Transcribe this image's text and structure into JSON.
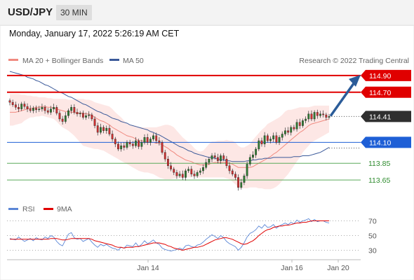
{
  "header": {
    "symbol": "USD/JPY",
    "timeframe": "30 MIN"
  },
  "datetime": "Monday, January 17, 2022 5:26:19 AM CET",
  "legend": {
    "ma20": "MA 20 + Bollinger Bands",
    "ma50": "MA 50",
    "rsi": "RSI",
    "rsi_ma": "9MA"
  },
  "copyright": "Research © 2022 Trading Central",
  "colors": {
    "bull": "#2e7d32",
    "bear": "#d32f2f",
    "resistance": "#e00000",
    "support": "#1e5fd6",
    "minor_level": "#5aaa5a",
    "ma20": "#f08a80",
    "ma50": "#3b5a9a",
    "band_fill": "#fde3e0",
    "rsi": "#5a86d6",
    "rsi_ma": "#e00000",
    "arrow": "#2b5c99"
  },
  "chart_data": [
    {
      "type": "candlestick",
      "title": "USD/JPY 30 MIN",
      "ylim": [
        113.5,
        115.0
      ],
      "x_ticks": [
        "Jan 14",
        "Jan 16",
        "Jan 20"
      ],
      "current_price": "114.41",
      "levels": [
        {
          "value": 114.9,
          "label": "114.90",
          "kind": "resistance",
          "style": "tag"
        },
        {
          "value": 114.7,
          "label": "114.70",
          "kind": "resistance",
          "style": "tag"
        },
        {
          "value": 114.1,
          "label": "114.10",
          "kind": "support",
          "style": "tag"
        },
        {
          "value": 113.85,
          "label": "113.85",
          "kind": "minor",
          "style": "text"
        },
        {
          "value": 113.65,
          "label": "113.65",
          "kind": "minor",
          "style": "text"
        }
      ],
      "close": [
        114.58,
        114.55,
        114.52,
        114.5,
        114.56,
        114.53,
        114.5,
        114.48,
        114.51,
        114.49,
        114.5,
        114.52,
        114.48,
        114.46,
        114.5,
        114.52,
        114.45,
        114.38,
        114.35,
        114.42,
        114.48,
        114.52,
        114.46,
        114.44,
        114.45,
        114.4,
        114.42,
        114.43,
        114.38,
        114.3,
        114.22,
        114.28,
        114.24,
        114.27,
        114.2,
        114.14,
        114.08,
        114.02,
        114.06,
        114.04,
        114.1,
        114.08,
        114.06,
        114.12,
        114.05,
        114.1,
        114.16,
        114.1,
        114.14,
        114.18,
        114.12,
        114.1,
        113.98,
        113.9,
        113.82,
        113.78,
        113.74,
        113.7,
        113.72,
        113.68,
        113.76,
        113.78,
        113.72,
        113.7,
        113.74,
        113.76,
        113.8,
        113.86,
        113.9,
        113.94,
        113.92,
        113.88,
        113.94,
        113.9,
        113.82,
        113.76,
        113.72,
        113.68,
        113.56,
        113.62,
        113.7,
        113.84,
        113.92,
        113.95,
        114.02,
        114.12,
        114.08,
        114.18,
        114.12,
        114.14,
        114.18,
        114.1,
        114.16,
        114.2,
        114.24,
        114.22,
        114.28,
        114.26,
        114.34,
        114.3,
        114.36,
        114.38,
        114.44,
        114.38,
        114.46,
        114.42,
        114.44,
        114.43,
        114.4,
        114.41
      ],
      "ma20": [
        114.46,
        114.46,
        114.46,
        114.47,
        114.48,
        114.49,
        114.5,
        114.51,
        114.51,
        114.52,
        114.52,
        114.53,
        114.53,
        114.52,
        114.52,
        114.51,
        114.5,
        114.49,
        114.48,
        114.47,
        114.47,
        114.46,
        114.46,
        114.45,
        114.45,
        114.45,
        114.44,
        114.44,
        114.42,
        114.4,
        114.38,
        114.36,
        114.35,
        114.33,
        114.31,
        114.28,
        114.26,
        114.24,
        114.22,
        114.2,
        114.18,
        114.17,
        114.16,
        114.14,
        114.12,
        114.12,
        114.11,
        114.1,
        114.1,
        114.1,
        114.09,
        114.09,
        114.07,
        114.05,
        114.03,
        114.0,
        113.98,
        113.95,
        113.93,
        113.91,
        113.89,
        113.88,
        113.87,
        113.85,
        113.84,
        113.83,
        113.83,
        113.83,
        113.84,
        113.85,
        113.86,
        113.86,
        113.86,
        113.86,
        113.86,
        113.85,
        113.84,
        113.82,
        113.8,
        113.8,
        113.8,
        113.8,
        113.8,
        113.81,
        113.83,
        113.85,
        113.87,
        113.89,
        113.91,
        113.93,
        113.96,
        113.98,
        114.01,
        114.04,
        114.07,
        114.1,
        114.13,
        114.16,
        114.19,
        114.22,
        114.24,
        114.27,
        114.3,
        114.32,
        114.33,
        114.34,
        114.35,
        114.36,
        114.37,
        114.38
      ],
      "ma50": [
        114.95,
        114.94,
        114.93,
        114.92,
        114.91,
        114.9,
        114.88,
        114.87,
        114.86,
        114.84,
        114.83,
        114.81,
        114.79,
        114.78,
        114.76,
        114.74,
        114.72,
        114.7,
        114.69,
        114.67,
        114.65,
        114.64,
        114.62,
        114.6,
        114.58,
        114.56,
        114.55,
        114.53,
        114.51,
        114.49,
        114.47,
        114.46,
        114.44,
        114.43,
        114.41,
        114.39,
        114.38,
        114.37,
        114.35,
        114.34,
        114.33,
        114.31,
        114.3,
        114.29,
        114.28,
        114.27,
        114.26,
        114.25,
        114.23,
        114.22,
        114.2,
        114.19,
        114.17,
        114.15,
        114.13,
        114.11,
        114.09,
        114.07,
        114.05,
        114.04,
        114.02,
        114.0,
        113.99,
        113.97,
        113.96,
        113.95,
        113.94,
        113.93,
        113.92,
        113.92,
        113.91,
        113.9,
        113.89,
        113.89,
        113.88,
        113.88,
        113.87,
        113.87,
        113.87,
        113.87,
        113.87,
        113.88,
        113.88,
        113.89,
        113.89,
        113.9,
        113.9,
        113.91,
        113.91,
        113.91,
        113.92,
        113.92,
        113.92,
        113.92,
        113.92,
        113.92,
        113.92,
        113.93,
        113.93,
        113.93,
        113.94,
        113.94,
        113.94,
        113.95,
        113.96,
        113.97,
        113.98,
        114.0,
        114.02,
        114.04
      ],
      "bb_upper": [
        114.68,
        114.68,
        114.68,
        114.68,
        114.67,
        114.67,
        114.66,
        114.66,
        114.65,
        114.65,
        114.64,
        114.64,
        114.64,
        114.63,
        114.63,
        114.62,
        114.62,
        114.62,
        114.62,
        114.62,
        114.61,
        114.61,
        114.61,
        114.62,
        114.62,
        114.62,
        114.61,
        114.61,
        114.6,
        114.58,
        114.57,
        114.56,
        114.55,
        114.54,
        114.53,
        114.5,
        114.46,
        114.43,
        114.4,
        114.36,
        114.32,
        114.31,
        114.3,
        114.3,
        114.28,
        114.28,
        114.28,
        114.28,
        114.28,
        114.28,
        114.28,
        114.29,
        114.3,
        114.31,
        114.31,
        114.3,
        114.28,
        114.24,
        114.2,
        114.16,
        114.13,
        114.1,
        114.07,
        114.03,
        114.0,
        113.99,
        114.0,
        114.04,
        114.08,
        114.11,
        114.11,
        114.12,
        114.12,
        114.12,
        114.13,
        114.12,
        114.12,
        114.1,
        114.06,
        114.04,
        114.04,
        114.06,
        114.08,
        114.13,
        114.17,
        114.21,
        114.25,
        114.28,
        114.32,
        114.34,
        114.36,
        114.38,
        114.4,
        114.43,
        114.47,
        114.49,
        114.49,
        114.5,
        114.51,
        114.52,
        114.52,
        114.52,
        114.52,
        114.53,
        114.54,
        114.54,
        114.54,
        114.54,
        114.54,
        114.54
      ],
      "bb_lower": [
        114.3,
        114.3,
        114.31,
        114.32,
        114.33,
        114.36,
        114.38,
        114.4,
        114.4,
        114.41,
        114.41,
        114.42,
        114.41,
        114.4,
        114.39,
        114.38,
        114.35,
        114.31,
        114.28,
        114.26,
        114.24,
        114.21,
        114.18,
        114.14,
        114.1,
        114.06,
        114.05,
        114.04,
        114.03,
        114.02,
        114.02,
        114.01,
        114.0,
        113.98,
        113.96,
        113.94,
        113.92,
        113.9,
        113.88,
        113.86,
        113.84,
        113.82,
        113.8,
        113.78,
        113.76,
        113.75,
        113.74,
        113.74,
        113.73,
        113.72,
        113.7,
        113.68,
        113.67,
        113.66,
        113.66,
        113.66,
        113.67,
        113.67,
        113.68,
        113.68,
        113.68,
        113.68,
        113.68,
        113.69,
        113.68,
        113.68,
        113.68,
        113.68,
        113.68,
        113.68,
        113.68,
        113.68,
        113.68,
        113.68,
        113.67,
        113.66,
        113.63,
        113.6,
        113.56,
        113.55,
        113.55,
        113.55,
        113.56,
        113.56,
        113.56,
        113.55,
        113.55,
        113.54,
        113.54,
        113.54,
        113.55,
        113.57,
        113.6,
        113.64,
        113.68,
        113.72,
        113.77,
        113.82,
        113.87,
        113.92,
        113.98,
        114.02,
        114.06,
        114.1,
        114.12,
        114.14,
        114.16,
        114.18,
        114.2,
        114.22
      ]
    },
    {
      "type": "line",
      "title": "RSI",
      "ylim": [
        20,
        80
      ],
      "y_ticks": [
        "70",
        "50",
        "30"
      ],
      "series": [
        {
          "name": "RSI",
          "values": [
            46,
            45,
            44,
            48,
            45,
            42,
            44,
            46,
            43,
            47,
            45,
            44,
            48,
            46,
            50,
            48,
            42,
            38,
            36,
            44,
            52,
            54,
            47,
            45,
            46,
            42,
            44,
            46,
            41,
            37,
            34,
            38,
            36,
            38,
            35,
            33,
            32,
            30,
            34,
            33,
            37,
            36,
            35,
            40,
            35,
            38,
            43,
            39,
            41,
            44,
            40,
            38,
            33,
            31,
            30,
            29,
            30,
            31,
            33,
            31,
            36,
            37,
            35,
            34,
            37,
            38,
            41,
            45,
            48,
            51,
            49,
            46,
            50,
            47,
            42,
            39,
            37,
            35,
            30,
            34,
            40,
            48,
            53,
            55,
            58,
            63,
            60,
            65,
            61,
            62,
            65,
            60,
            63,
            65,
            67,
            65,
            68,
            66,
            71,
            68,
            70,
            71,
            73,
            69,
            72,
            69,
            70,
            70,
            68,
            67
          ]
        },
        {
          "name": "9MA",
          "values": [
            45,
            45,
            45,
            45,
            45,
            45,
            45,
            45,
            45,
            45,
            45,
            45,
            45,
            45,
            46,
            46,
            46,
            45,
            44,
            44,
            45,
            46,
            46,
            46,
            46,
            46,
            46,
            46,
            45,
            43,
            42,
            41,
            40,
            39,
            38,
            37,
            35,
            34,
            34,
            33,
            34,
            34,
            34,
            35,
            35,
            36,
            37,
            38,
            39,
            40,
            40,
            40,
            39,
            38,
            36,
            35,
            33,
            32,
            31,
            30,
            31,
            32,
            33,
            34,
            34,
            35,
            36,
            38,
            40,
            42,
            44,
            45,
            46,
            47,
            47,
            46,
            45,
            43,
            41,
            39,
            38,
            39,
            41,
            43,
            46,
            50,
            53,
            56,
            58,
            59,
            61,
            62,
            63,
            63,
            64,
            64,
            65,
            66,
            67,
            67,
            68,
            68,
            69,
            70,
            70,
            70,
            70,
            70,
            70,
            70
          ]
        }
      ]
    }
  ]
}
